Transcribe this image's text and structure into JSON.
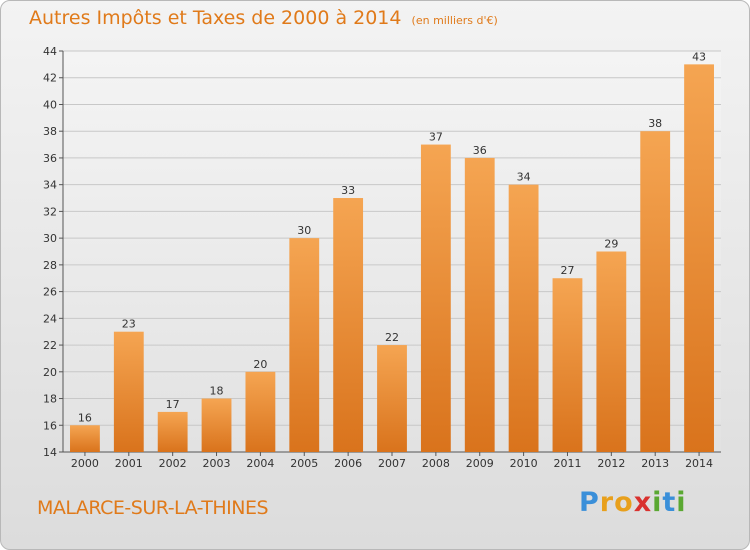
{
  "header": {
    "title": "Autres Impôts et Taxes de 2000 à 2014",
    "subtitle": "(en milliers d'€)"
  },
  "footer": {
    "commune": "MALARCE-SUR-LA-THINES",
    "logo_letters": [
      "P",
      "r",
      "o",
      "x",
      "i",
      "t",
      "i"
    ],
    "logo_colors": [
      "#3a8fd9",
      "#e8a01c",
      "#e8a01c",
      "#d9312e",
      "#5aa832",
      "#3a8fd9",
      "#5aa832"
    ]
  },
  "colors": {
    "bar_top": "#f5a552",
    "bar_bottom": "#d9731c",
    "grid": "#c8c8c8"
  },
  "chart_data": {
    "type": "bar",
    "title": "Autres Impôts et Taxes de 2000 à 2014",
    "subtitle": "(en milliers d'€)",
    "xlabel": "",
    "ylabel": "",
    "categories": [
      "2000",
      "2001",
      "2002",
      "2003",
      "2004",
      "2005",
      "2006",
      "2007",
      "2008",
      "2009",
      "2010",
      "2011",
      "2012",
      "2013",
      "2014"
    ],
    "values": [
      16,
      23,
      17,
      18,
      20,
      30,
      33,
      22,
      37,
      36,
      34,
      27,
      29,
      38,
      43
    ],
    "ylim": [
      14,
      44
    ],
    "yticks": [
      14,
      16,
      18,
      20,
      22,
      24,
      26,
      28,
      30,
      32,
      34,
      36,
      38,
      40,
      42,
      44
    ],
    "grid": true,
    "data_labels": true
  }
}
